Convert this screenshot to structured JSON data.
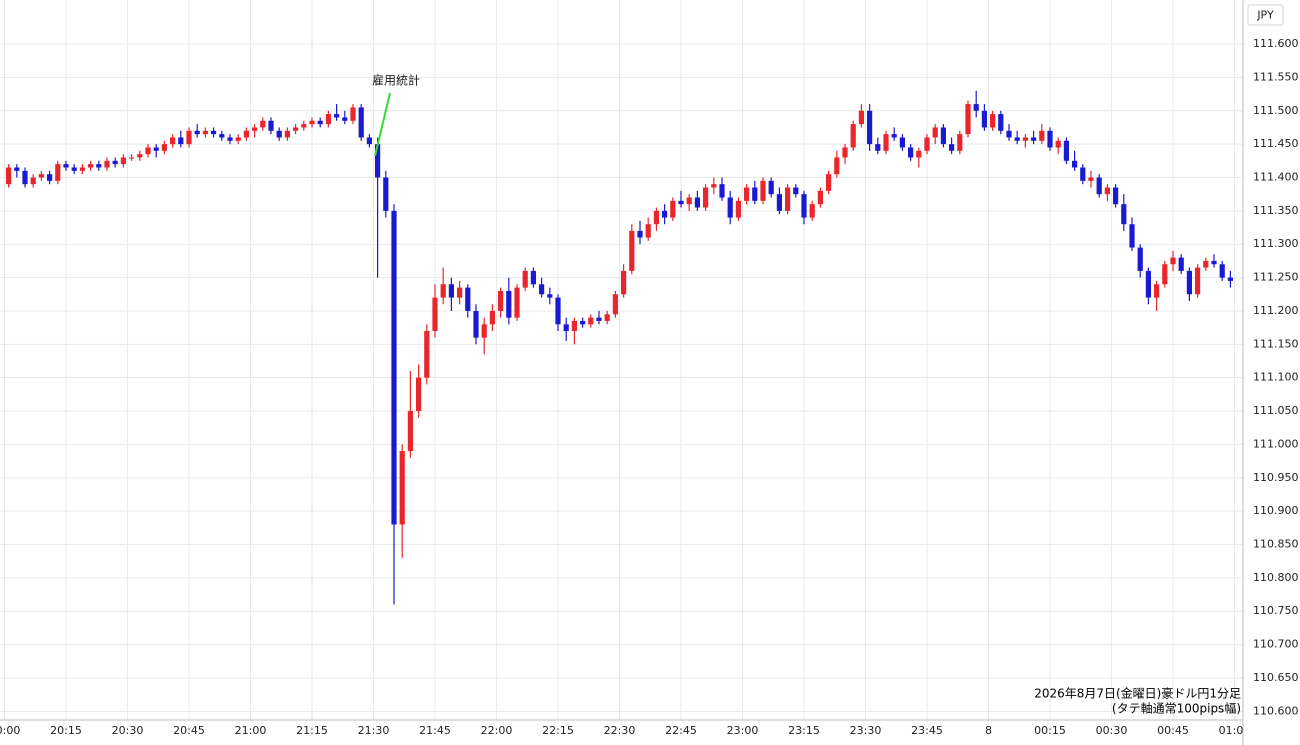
{
  "chart_data": {
    "type": "candlestick",
    "currency": "JPY",
    "annotation": "雇用統計",
    "notes": [
      "2026年8月7日(金曜日)豪ドル円1分足",
      "(タテ軸通常100pips幅)"
    ],
    "up_color": "#e8262c",
    "down_color": "#1a1ad0",
    "grid": true,
    "ylim": [
      110.587,
      111.666
    ],
    "yticks": [
      {
        "value": 110.6,
        "label": "110.600"
      },
      {
        "value": 110.65,
        "label": "110.650"
      },
      {
        "value": 110.7,
        "label": "110.700"
      },
      {
        "value": 110.75,
        "label": "110.750"
      },
      {
        "value": 110.8,
        "label": "110.800"
      },
      {
        "value": 110.85,
        "label": "110.850"
      },
      {
        "value": 110.9,
        "label": "110.900"
      },
      {
        "value": 110.95,
        "label": "110.950"
      },
      {
        "value": 111.0,
        "label": "111.000"
      },
      {
        "value": 111.05,
        "label": "111.050"
      },
      {
        "value": 111.1,
        "label": "111.100"
      },
      {
        "value": 111.15,
        "label": "111.150"
      },
      {
        "value": 111.2,
        "label": "111.200"
      },
      {
        "value": 111.25,
        "label": "111.250"
      },
      {
        "value": 111.3,
        "label": "111.300"
      },
      {
        "value": 111.35,
        "label": "111.350"
      },
      {
        "value": 111.4,
        "label": "111.400"
      },
      {
        "value": 111.45,
        "label": "111.450"
      },
      {
        "value": 111.5,
        "label": "111.500"
      },
      {
        "value": 111.55,
        "label": "111.550"
      },
      {
        "value": 111.6,
        "label": "111.600"
      }
    ],
    "xticks": [
      "20:00",
      "20:15",
      "20:30",
      "20:45",
      "21:00",
      "21:15",
      "21:30",
      "21:45",
      "22:00",
      "22:15",
      "22:30",
      "22:45",
      "23:00",
      "23:15",
      "23:30",
      "23:45",
      {
        "value": "00:00",
        "label": "8"
      },
      "00:15",
      "00:30",
      "00:45",
      "01:00"
    ],
    "x": [
      "20:00",
      "20:02",
      "20:04",
      "20:06",
      "20:08",
      "20:10",
      "20:12",
      "20:14",
      "20:16",
      "20:18",
      "20:20",
      "20:22",
      "20:24",
      "20:26",
      "20:28",
      "20:30",
      "20:32",
      "20:34",
      "20:36",
      "20:38",
      "20:40",
      "20:42",
      "20:44",
      "20:46",
      "20:48",
      "20:50",
      "20:52",
      "20:54",
      "20:56",
      "20:58",
      "21:00",
      "21:02",
      "21:04",
      "21:06",
      "21:08",
      "21:10",
      "21:12",
      "21:14",
      "21:16",
      "21:18",
      "21:20",
      "21:22",
      "21:24",
      "21:26",
      "21:28",
      "21:30",
      "21:32",
      "21:34",
      "21:36",
      "21:38",
      "21:40",
      "21:42",
      "21:44",
      "21:46",
      "21:48",
      "21:50",
      "21:52",
      "21:54",
      "21:56",
      "21:58",
      "22:00",
      "22:02",
      "22:04",
      "22:06",
      "22:08",
      "22:10",
      "22:12",
      "22:14",
      "22:16",
      "22:18",
      "22:20",
      "22:22",
      "22:24",
      "22:26",
      "22:28",
      "22:30",
      "22:32",
      "22:34",
      "22:36",
      "22:38",
      "22:40",
      "22:42",
      "22:44",
      "22:46",
      "22:48",
      "22:50",
      "22:52",
      "22:54",
      "22:56",
      "22:58",
      "23:00",
      "23:02",
      "23:04",
      "23:06",
      "23:08",
      "23:10",
      "23:12",
      "23:14",
      "23:16",
      "23:18",
      "23:20",
      "23:22",
      "23:24",
      "23:26",
      "23:28",
      "23:30",
      "23:32",
      "23:34",
      "23:36",
      "23:38",
      "23:40",
      "23:42",
      "23:44",
      "23:46",
      "23:48",
      "23:50",
      "23:52",
      "23:54",
      "23:56",
      "23:58",
      "00:00",
      "00:02",
      "00:04",
      "00:06",
      "00:08",
      "00:10",
      "00:12",
      "00:14",
      "00:16",
      "00:18",
      "00:20",
      "00:22",
      "00:24",
      "00:26",
      "00:28",
      "00:30",
      "00:32",
      "00:34",
      "00:36",
      "00:38",
      "00:40",
      "00:42",
      "00:44",
      "00:46",
      "00:48",
      "00:50",
      "00:52",
      "00:54",
      "00:56",
      "00:58"
    ],
    "candles": [
      [
        111.39,
        111.42,
        111.385,
        111.415
      ],
      [
        111.415,
        111.42,
        111.4,
        111.41
      ],
      [
        111.41,
        111.415,
        111.385,
        111.39
      ],
      [
        111.39,
        111.405,
        111.385,
        111.4
      ],
      [
        111.4,
        111.41,
        111.395,
        111.405
      ],
      [
        111.405,
        111.41,
        111.39,
        111.395
      ],
      [
        111.395,
        111.425,
        111.39,
        111.42
      ],
      [
        111.42,
        111.425,
        111.41,
        111.415
      ],
      [
        111.415,
        111.42,
        111.405,
        111.41
      ],
      [
        111.41,
        111.42,
        111.405,
        111.415
      ],
      [
        111.415,
        111.425,
        111.41,
        111.42
      ],
      [
        111.42,
        111.425,
        111.41,
        111.415
      ],
      [
        111.415,
        111.43,
        111.41,
        111.425
      ],
      [
        111.425,
        111.43,
        111.415,
        111.42
      ],
      [
        111.42,
        111.435,
        111.415,
        111.43
      ],
      [
        111.43,
        111.435,
        111.425,
        111.43
      ],
      [
        111.43,
        111.44,
        111.425,
        111.435
      ],
      [
        111.435,
        111.45,
        111.43,
        111.445
      ],
      [
        111.445,
        111.45,
        111.43,
        111.44
      ],
      [
        111.44,
        111.455,
        111.435,
        111.45
      ],
      [
        111.45,
        111.465,
        111.445,
        111.46
      ],
      [
        111.46,
        111.47,
        111.445,
        111.45
      ],
      [
        111.45,
        111.475,
        111.445,
        111.47
      ],
      [
        111.47,
        111.48,
        111.46,
        111.465
      ],
      [
        111.465,
        111.475,
        111.46,
        111.47
      ],
      [
        111.47,
        111.475,
        111.46,
        111.465
      ],
      [
        111.465,
        111.47,
        111.455,
        111.46
      ],
      [
        111.46,
        111.465,
        111.45,
        111.455
      ],
      [
        111.455,
        111.465,
        111.45,
        111.46
      ],
      [
        111.46,
        111.475,
        111.455,
        111.47
      ],
      [
        111.47,
        111.48,
        111.46,
        111.475
      ],
      [
        111.475,
        111.49,
        111.47,
        111.485
      ],
      [
        111.485,
        111.49,
        111.465,
        111.47
      ],
      [
        111.47,
        111.475,
        111.455,
        111.46
      ],
      [
        111.46,
        111.475,
        111.455,
        111.47
      ],
      [
        111.47,
        111.48,
        111.465,
        111.475
      ],
      [
        111.475,
        111.485,
        111.47,
        111.48
      ],
      [
        111.48,
        111.49,
        111.475,
        111.485
      ],
      [
        111.485,
        111.49,
        111.475,
        111.48
      ],
      [
        111.48,
        111.5,
        111.475,
        111.495
      ],
      [
        111.495,
        111.51,
        111.485,
        111.49
      ],
      [
        111.49,
        111.5,
        111.48,
        111.485
      ],
      [
        111.485,
        111.51,
        111.48,
        111.505
      ],
      [
        111.505,
        111.51,
        111.455,
        111.46
      ],
      [
        111.46,
        111.465,
        111.445,
        111.45
      ],
      [
        111.45,
        111.46,
        111.25,
        111.4
      ],
      [
        111.4,
        111.41,
        111.34,
        111.35
      ],
      [
        111.35,
        111.36,
        110.76,
        110.88
      ],
      [
        110.88,
        111.0,
        110.83,
        110.99
      ],
      [
        110.99,
        111.11,
        110.98,
        111.05
      ],
      [
        111.05,
        111.12,
        111.04,
        111.1
      ],
      [
        111.1,
        111.18,
        111.09,
        111.17
      ],
      [
        111.17,
        111.24,
        111.16,
        111.22
      ],
      [
        111.22,
        111.265,
        111.21,
        111.24
      ],
      [
        111.24,
        111.25,
        111.2,
        111.22
      ],
      [
        111.22,
        111.245,
        111.21,
        111.235
      ],
      [
        111.235,
        111.24,
        111.19,
        111.2
      ],
      [
        111.2,
        111.21,
        111.15,
        111.16
      ],
      [
        111.16,
        111.19,
        111.135,
        111.18
      ],
      [
        111.18,
        111.21,
        111.17,
        111.2
      ],
      [
        111.2,
        111.235,
        111.19,
        111.23
      ],
      [
        111.23,
        111.25,
        111.18,
        111.19
      ],
      [
        111.19,
        111.24,
        111.185,
        111.235
      ],
      [
        111.235,
        111.265,
        111.23,
        111.26
      ],
      [
        111.26,
        111.265,
        111.235,
        111.24
      ],
      [
        111.24,
        111.25,
        111.22,
        111.225
      ],
      [
        111.225,
        111.235,
        111.21,
        111.22
      ],
      [
        111.22,
        111.225,
        111.17,
        111.18
      ],
      [
        111.18,
        111.19,
        111.155,
        111.17
      ],
      [
        111.17,
        111.19,
        111.15,
        111.185
      ],
      [
        111.185,
        111.19,
        111.175,
        111.18
      ],
      [
        111.18,
        111.195,
        111.175,
        111.19
      ],
      [
        111.19,
        111.2,
        111.18,
        111.185
      ],
      [
        111.185,
        111.2,
        111.18,
        111.195
      ],
      [
        111.195,
        111.23,
        111.19,
        111.225
      ],
      [
        111.225,
        111.27,
        111.22,
        111.26
      ],
      [
        111.26,
        111.33,
        111.255,
        111.32
      ],
      [
        111.32,
        111.335,
        111.3,
        111.31
      ],
      [
        111.31,
        111.34,
        111.305,
        111.33
      ],
      [
        111.33,
        111.355,
        111.32,
        111.35
      ],
      [
        111.35,
        111.36,
        111.33,
        111.34
      ],
      [
        111.34,
        111.37,
        111.335,
        111.365
      ],
      [
        111.365,
        111.38,
        111.355,
        111.36
      ],
      [
        111.36,
        111.375,
        111.35,
        111.37
      ],
      [
        111.37,
        111.38,
        111.35,
        111.355
      ],
      [
        111.355,
        111.39,
        111.35,
        111.385
      ],
      [
        111.385,
        111.4,
        111.375,
        111.39
      ],
      [
        111.39,
        111.4,
        111.365,
        111.37
      ],
      [
        111.37,
        111.38,
        111.33,
        111.34
      ],
      [
        111.34,
        111.37,
        111.335,
        111.365
      ],
      [
        111.365,
        111.39,
        111.36,
        111.385
      ],
      [
        111.385,
        111.395,
        111.36,
        111.365
      ],
      [
        111.365,
        111.4,
        111.36,
        111.395
      ],
      [
        111.395,
        111.4,
        111.37,
        111.375
      ],
      [
        111.375,
        111.385,
        111.345,
        111.35
      ],
      [
        111.35,
        111.39,
        111.345,
        111.385
      ],
      [
        111.385,
        111.39,
        111.37,
        111.375
      ],
      [
        111.375,
        111.38,
        111.33,
        111.34
      ],
      [
        111.34,
        111.365,
        111.335,
        111.36
      ],
      [
        111.36,
        111.385,
        111.355,
        111.38
      ],
      [
        111.38,
        111.41,
        111.375,
        111.405
      ],
      [
        111.405,
        111.44,
        111.4,
        111.43
      ],
      [
        111.43,
        111.45,
        111.42,
        111.445
      ],
      [
        111.445,
        111.485,
        111.44,
        111.48
      ],
      [
        111.48,
        111.51,
        111.475,
        111.5
      ],
      [
        111.5,
        111.51,
        111.44,
        111.45
      ],
      [
        111.45,
        111.46,
        111.435,
        111.44
      ],
      [
        111.44,
        111.47,
        111.435,
        111.465
      ],
      [
        111.465,
        111.475,
        111.455,
        111.46
      ],
      [
        111.46,
        111.465,
        111.44,
        111.445
      ],
      [
        111.445,
        111.45,
        111.425,
        111.43
      ],
      [
        111.43,
        111.445,
        111.415,
        111.44
      ],
      [
        111.44,
        111.465,
        111.435,
        111.46
      ],
      [
        111.46,
        111.48,
        111.45,
        111.475
      ],
      [
        111.475,
        111.48,
        111.445,
        111.45
      ],
      [
        111.45,
        111.46,
        111.435,
        111.44
      ],
      [
        111.44,
        111.47,
        111.435,
        111.465
      ],
      [
        111.465,
        111.515,
        111.46,
        111.51
      ],
      [
        111.51,
        111.53,
        111.49,
        111.5
      ],
      [
        111.5,
        111.51,
        111.47,
        111.475
      ],
      [
        111.475,
        111.5,
        111.47,
        111.495
      ],
      [
        111.495,
        111.5,
        111.465,
        111.47
      ],
      [
        111.47,
        111.48,
        111.455,
        111.46
      ],
      [
        111.46,
        111.47,
        111.45,
        111.455
      ],
      [
        111.455,
        111.465,
        111.445,
        111.46
      ],
      [
        111.46,
        111.47,
        111.45,
        111.455
      ],
      [
        111.455,
        111.48,
        111.45,
        111.47
      ],
      [
        111.47,
        111.475,
        111.44,
        111.445
      ],
      [
        111.445,
        111.46,
        111.435,
        111.455
      ],
      [
        111.455,
        111.46,
        111.42,
        111.425
      ],
      [
        111.425,
        111.44,
        111.41,
        111.415
      ],
      [
        111.415,
        111.42,
        111.39,
        111.395
      ],
      [
        111.395,
        111.41,
        111.385,
        111.4
      ],
      [
        111.4,
        111.405,
        111.37,
        111.375
      ],
      [
        111.375,
        111.39,
        111.365,
        111.385
      ],
      [
        111.385,
        111.39,
        111.355,
        111.36
      ],
      [
        111.36,
        111.375,
        111.32,
        111.33
      ],
      [
        111.33,
        111.34,
        111.29,
        111.295
      ],
      [
        111.295,
        111.3,
        111.25,
        111.26
      ],
      [
        111.26,
        111.265,
        111.21,
        111.22
      ],
      [
        111.22,
        111.245,
        111.2,
        111.24
      ],
      [
        111.24,
        111.275,
        111.235,
        111.27
      ],
      [
        111.27,
        111.29,
        111.26,
        111.28
      ],
      [
        111.28,
        111.285,
        111.255,
        111.26
      ],
      [
        111.26,
        111.265,
        111.215,
        111.225
      ],
      [
        111.225,
        111.27,
        111.22,
        111.265
      ],
      [
        111.265,
        111.28,
        111.26,
        111.275
      ],
      [
        111.275,
        111.285,
        111.265,
        111.27
      ],
      [
        111.27,
        111.275,
        111.245,
        111.25
      ],
      [
        111.25,
        111.26,
        111.235,
        111.245
      ]
    ]
  }
}
